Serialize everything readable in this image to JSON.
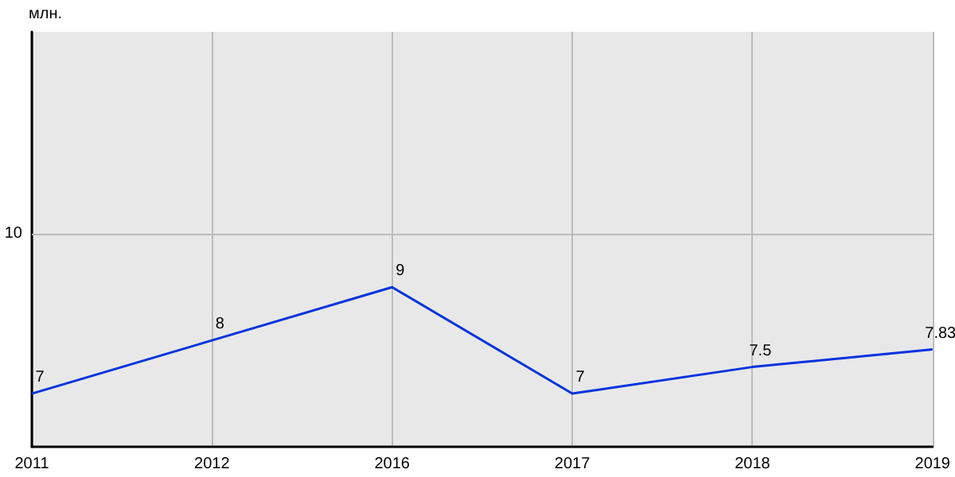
{
  "chart_data": {
    "type": "line",
    "ylabel": "млн.",
    "categories": [
      "2011",
      "2012",
      "2016",
      "2017",
      "2018",
      "2019"
    ],
    "series": [
      {
        "color": "#0033dd",
        "values": [
          7,
          8,
          9,
          7,
          7.5,
          7.83
        ]
      }
    ],
    "ylim": [
      6,
      13.8
    ],
    "ref_lines": [
      {
        "axis": "y",
        "value": 10,
        "label": "10",
        "color": "#bbbbbb"
      }
    ],
    "grid": "x",
    "data_labels": true,
    "marker": "none",
    "line_style": "solid"
  }
}
